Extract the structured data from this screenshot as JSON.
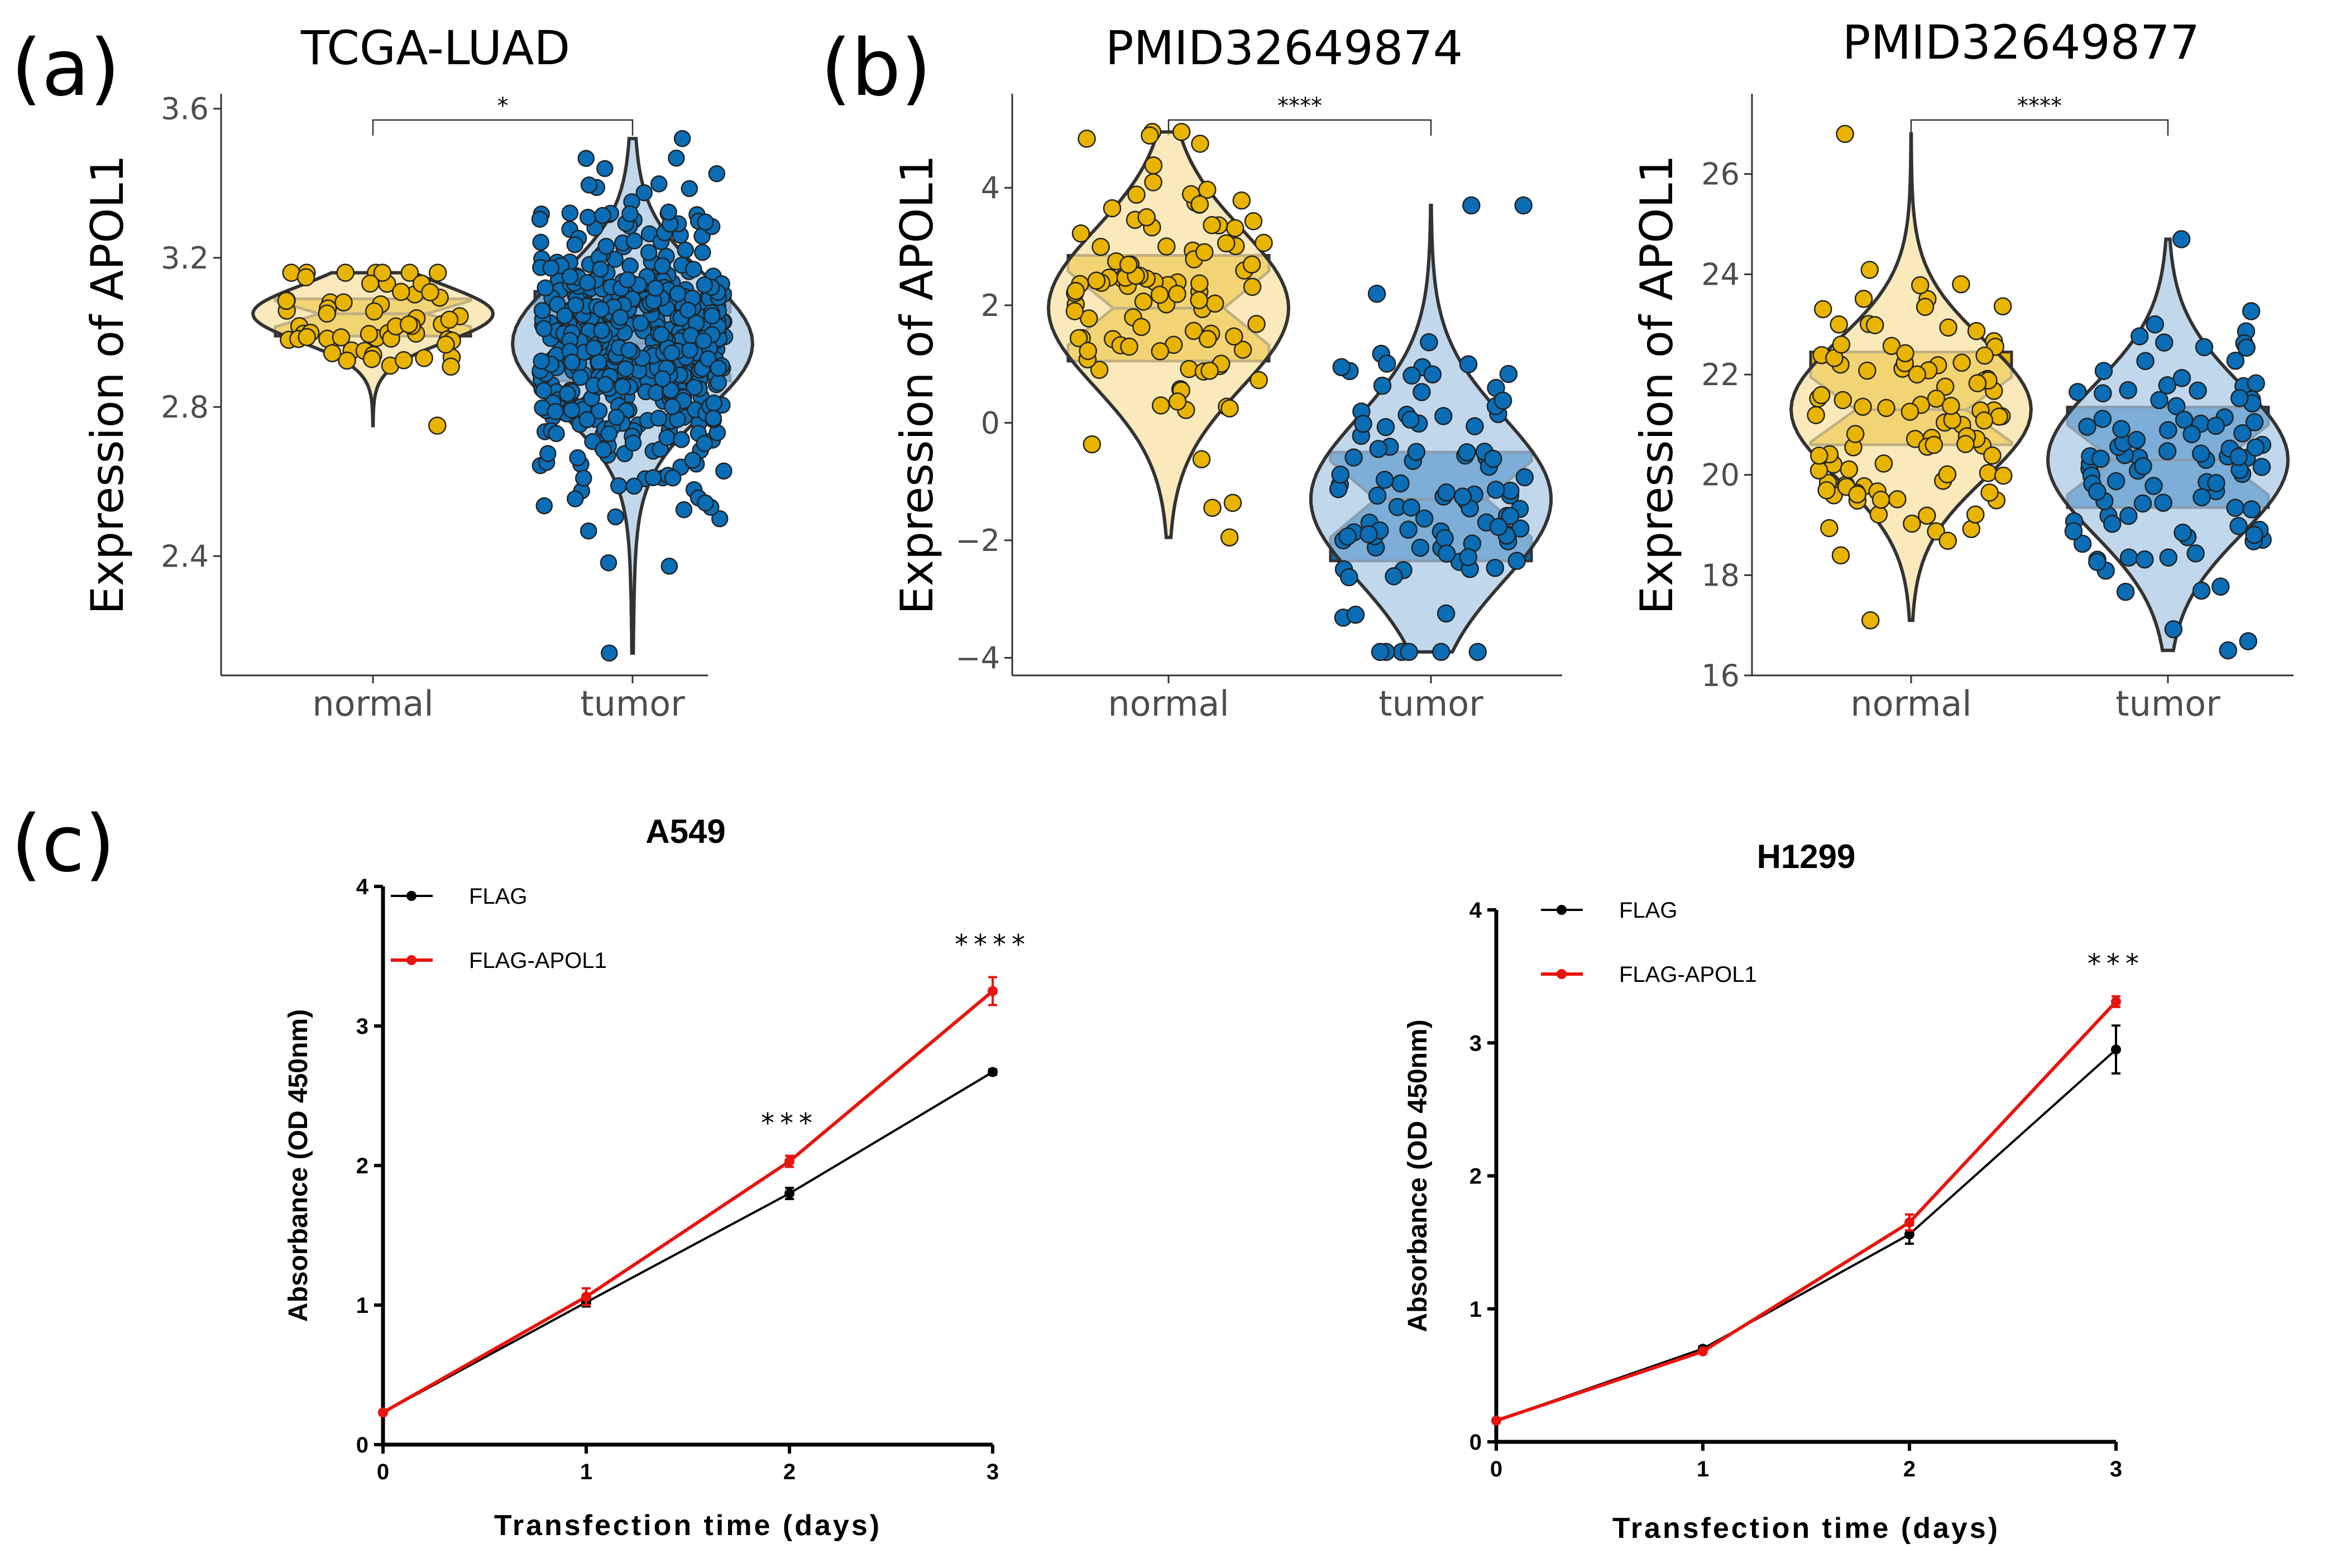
{
  "colors": {
    "normal": "#E8B400",
    "normal_light": "#F6E1A1",
    "tumor": "#0A6DB5",
    "tumor_light": "#A9C7E5",
    "flag": "#000000",
    "flag_apol1": "#E8140E"
  },
  "labels": {
    "a": "(a)",
    "b": "(b)",
    "c": "(c)"
  },
  "chart_data": [
    {
      "id": "a",
      "type": "violin",
      "title": "TCGA-LUAD",
      "ylabel": "Expression of APOL1",
      "xlabel": "",
      "categories": [
        "normal",
        "tumor"
      ],
      "ylim": [
        2.08,
        3.64
      ],
      "yticks": [
        2.4,
        2.8,
        3.2,
        3.6
      ],
      "ytick_labels": [
        "2.4",
        "2.8",
        "3.2",
        "3.6"
      ],
      "significance": "*",
      "groups": [
        {
          "name": "normal",
          "q1": 2.99,
          "median": 3.05,
          "q3": 3.09,
          "min": 2.75,
          "max": 3.16,
          "n": 59
        },
        {
          "name": "tumor",
          "q1": 2.87,
          "median": 2.97,
          "q3": 3.11,
          "min": 2.14,
          "max": 3.52,
          "n": 515
        }
      ]
    },
    {
      "id": "b1",
      "type": "violin",
      "title": "PMID32649874",
      "ylabel": "Expression of APOL1",
      "xlabel": "",
      "categories": [
        "normal",
        "tumor"
      ],
      "ylim": [
        -4.3,
        5.6
      ],
      "yticks": [
        -4,
        -2,
        0,
        2,
        4
      ],
      "ytick_labels": [
        "−4",
        "−2",
        "0",
        "2",
        "4"
      ],
      "significance": "****",
      "groups": [
        {
          "name": "normal",
          "q1": 1.05,
          "median": 1.95,
          "q3": 2.85,
          "min": -1.95,
          "max": 4.95,
          "n": 100
        },
        {
          "name": "tumor",
          "q1": -2.35,
          "median": -1.3,
          "q3": -0.5,
          "min": -3.9,
          "max": 3.7,
          "n": 100
        }
      ]
    },
    {
      "id": "b2",
      "type": "violin",
      "title": "PMID32649877",
      "ylabel": "Expression of APOL1",
      "xlabel": "",
      "categories": [
        "normal",
        "tumor"
      ],
      "ylim": [
        16.0,
        27.6
      ],
      "yticks": [
        16,
        18,
        20,
        22,
        24,
        26
      ],
      "ytick_labels": [
        "16",
        "18",
        "20",
        "22",
        "24",
        "26"
      ],
      "significance": "****",
      "groups": [
        {
          "name": "normal",
          "q1": 20.6,
          "median": 21.3,
          "q3": 22.45,
          "min": 17.1,
          "max": 26.8,
          "n": 100
        },
        {
          "name": "tumor",
          "q1": 19.35,
          "median": 20.3,
          "q3": 21.35,
          "min": 16.5,
          "max": 24.7,
          "n": 100
        }
      ]
    },
    {
      "id": "c1",
      "type": "line",
      "title": "A549",
      "xlabel": "Transfection time (days)",
      "ylabel": "Absorbance (OD 450nm)",
      "x": [
        0,
        1,
        2,
        3
      ],
      "xtick_labels": [
        "0",
        "1",
        "2",
        "3"
      ],
      "ylim": [
        0,
        4
      ],
      "yticks": [
        0,
        1,
        2,
        3,
        4
      ],
      "ytick_labels": [
        "0",
        "1",
        "2",
        "3",
        "4"
      ],
      "series": [
        {
          "name": "FLAG",
          "values": [
            0.23,
            1.02,
            1.8,
            2.67
          ],
          "errors": [
            0.01,
            0.03,
            0.04,
            0.02
          ]
        },
        {
          "name": "FLAG-APOL1",
          "values": [
            0.23,
            1.06,
            2.03,
            3.25
          ],
          "errors": [
            0.01,
            0.06,
            0.04,
            0.1
          ]
        }
      ],
      "annotations": [
        {
          "x": 2,
          "text": "***"
        },
        {
          "x": 3,
          "text": "****"
        }
      ]
    },
    {
      "id": "c2",
      "type": "line",
      "title": "H1299",
      "xlabel": "Transfection time (days)",
      "ylabel": "Absorbance (OD 450nm)",
      "x": [
        0,
        1,
        2,
        3
      ],
      "xtick_labels": [
        "0",
        "1",
        "2",
        "3"
      ],
      "ylim": [
        0,
        4
      ],
      "yticks": [
        0,
        1,
        2,
        3,
        4
      ],
      "ytick_labels": [
        "0",
        "1",
        "2",
        "3",
        "4"
      ],
      "series": [
        {
          "name": "FLAG",
          "values": [
            0.16,
            0.7,
            1.56,
            2.95
          ],
          "errors": [
            0.01,
            0.02,
            0.07,
            0.18
          ]
        },
        {
          "name": "FLAG-APOL1",
          "values": [
            0.16,
            0.68,
            1.65,
            3.31
          ],
          "errors": [
            0.01,
            0.01,
            0.06,
            0.04
          ]
        }
      ],
      "annotations": [
        {
          "x": 3,
          "text": "***"
        }
      ]
    }
  ]
}
